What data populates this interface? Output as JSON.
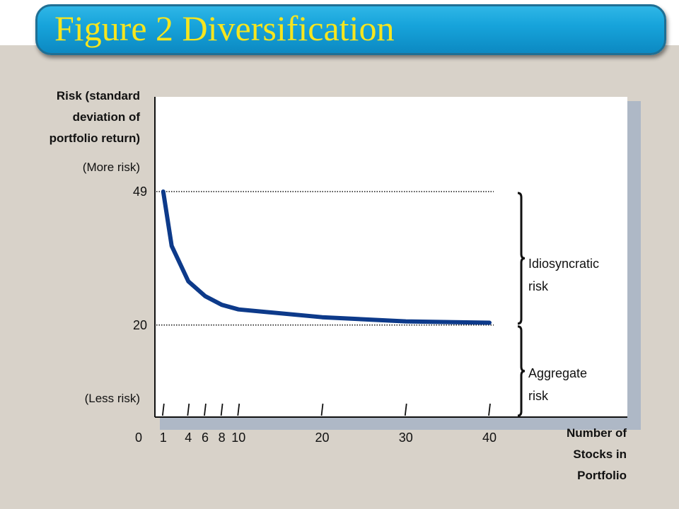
{
  "title": "Figure 2 Diversification",
  "chart_data": {
    "type": "line",
    "ylabel_lines": [
      "Risk (standard",
      "deviation of",
      "portfolio return)"
    ],
    "more_risk_label": "(More risk)",
    "less_risk_label": "(Less risk)",
    "xlabel_lines": [
      "Number of",
      "Stocks in",
      "Portfolio"
    ],
    "origin_label": "0",
    "x_ticks": [
      1,
      4,
      6,
      8,
      10,
      20,
      30,
      40
    ],
    "y_ticks": [
      20,
      49
    ],
    "xlim": [
      0,
      41
    ],
    "ylim": [
      0,
      53
    ],
    "series": [
      {
        "x": [
          1,
          2,
          4,
          6,
          8,
          10,
          20,
          30,
          40
        ],
        "y": [
          49,
          37.2,
          29.5,
          26.3,
          24.4,
          23.4,
          21.7,
          20.8,
          20.5
        ]
      }
    ],
    "color": "#0d3a8a",
    "reference_lines": [
      49,
      20
    ],
    "annotations": [
      {
        "lines": [
          "Idiosyncratic",
          "risk"
        ],
        "from": 20,
        "to": 49
      },
      {
        "lines": [
          "Aggregate",
          "risk"
        ],
        "from": 0,
        "to": 20
      }
    ]
  }
}
